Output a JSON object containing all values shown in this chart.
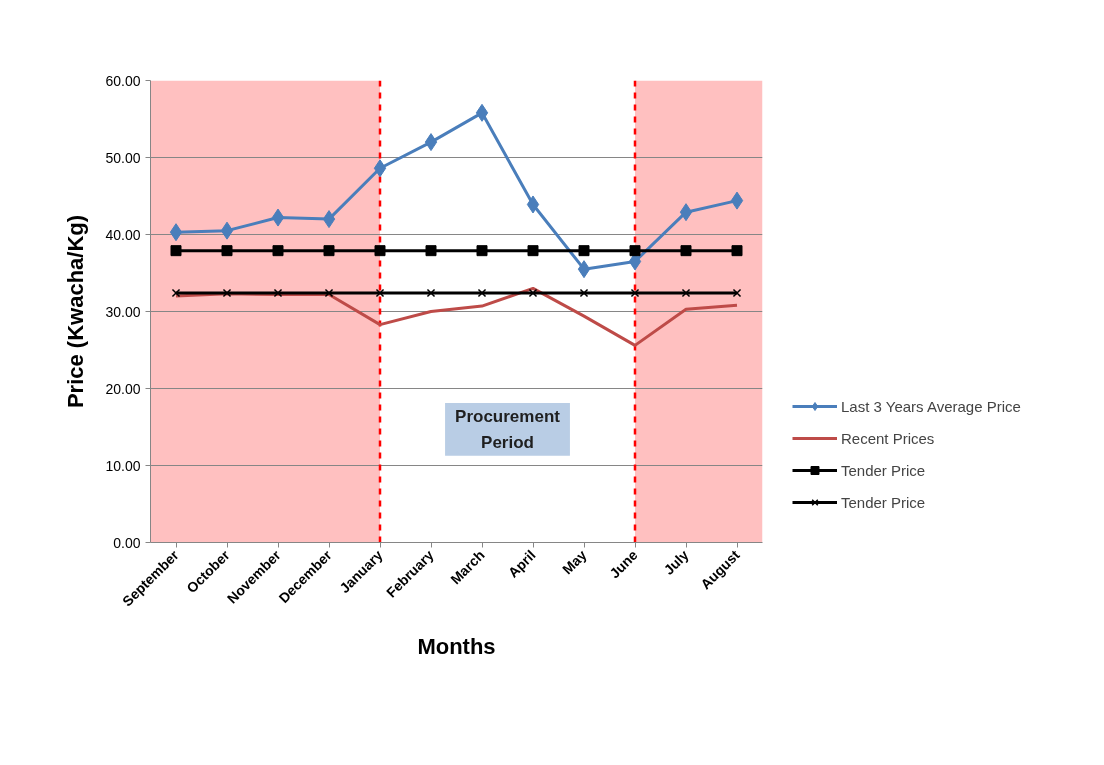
{
  "chart_data": {
    "type": "line",
    "xlabel": "Months",
    "ylabel": "Price (Kwacha/Kg)",
    "categories": [
      "September",
      "October",
      "November",
      "December",
      "January",
      "February",
      "March",
      "April",
      "May",
      "June",
      "July",
      "August"
    ],
    "ylim": [
      0,
      60
    ],
    "yticks": [
      {
        "value": 0,
        "label": "0.00"
      },
      {
        "value": 10,
        "label": "10.00"
      },
      {
        "value": 20,
        "label": "20.00"
      },
      {
        "value": 30,
        "label": "30.00"
      },
      {
        "value": 40,
        "label": "40.00"
      },
      {
        "value": 50,
        "label": "50.00"
      },
      {
        "value": 60,
        "label": "60.00"
      }
    ],
    "grid": "y",
    "legend": "right",
    "line_style": "solid",
    "series": [
      {
        "name": "Last 3 Years Average Price",
        "color": "#4a7ebb",
        "marker": "diamond",
        "values": [
          40.3,
          40.5,
          42.2,
          42.0,
          48.6,
          52.0,
          55.8,
          43.9,
          35.5,
          36.5,
          42.9,
          44.4
        ]
      },
      {
        "name": "Recent Prices",
        "color": "#be4b48",
        "marker": "none",
        "values": [
          32.0,
          32.3,
          32.2,
          32.2,
          28.3,
          30.0,
          30.7,
          33.0,
          29.4,
          25.6,
          30.3,
          30.8
        ]
      },
      {
        "name": "Tender Price",
        "color": "#000000",
        "marker": "square",
        "values": [
          37.9,
          37.9,
          37.9,
          37.9,
          37.9,
          37.9,
          37.9,
          37.9,
          37.9,
          37.9,
          37.9,
          37.9
        ]
      },
      {
        "name": "Tender Price",
        "color": "#000000",
        "marker": "cross",
        "values": [
          32.4,
          32.4,
          32.4,
          32.4,
          32.4,
          32.4,
          32.4,
          32.4,
          32.4,
          32.4,
          32.4,
          32.4
        ]
      }
    ],
    "ref_lines": [
      {
        "axis": "x",
        "value": "January",
        "color": "#ff0000",
        "line_style": "dashed"
      },
      {
        "axis": "x",
        "value": "June",
        "color": "#ff0000",
        "line_style": "dashed"
      }
    ],
    "bands": [
      {
        "axis": "x",
        "from": "September",
        "to": "January",
        "color": "#ffc0c0"
      },
      {
        "axis": "x",
        "from": "June",
        "to": "August",
        "color": "#ffc0c0"
      }
    ],
    "annotations": [
      "Procurement Period"
    ]
  }
}
